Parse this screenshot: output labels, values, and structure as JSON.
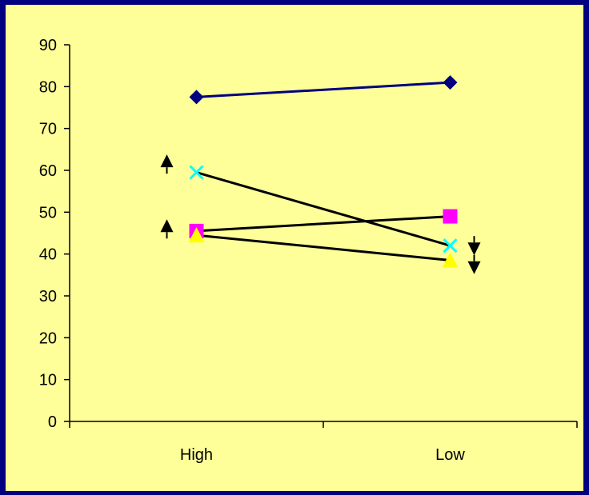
{
  "colors": {
    "frame": "#000080",
    "plot_background": "#FFFF99",
    "axis": "#000000"
  },
  "chart_data": {
    "type": "line",
    "title": "",
    "xlabel": "",
    "ylabel": "",
    "categories": [
      "High",
      "Low"
    ],
    "ylim": [
      0,
      90
    ],
    "yticks": [
      0,
      10,
      20,
      30,
      40,
      50,
      60,
      70,
      80,
      90
    ],
    "grid": false,
    "legend": "none",
    "series": [
      {
        "values": [
          77.5,
          81
        ],
        "color": "#000080",
        "line_color": "#000080",
        "marker": "diamond-icon",
        "marker_color": "#000080"
      },
      {
        "values": [
          59.5,
          42
        ],
        "color": "#00FFFF",
        "line_color": "#000000",
        "marker": "x-icon",
        "marker_color": "#00FFFF"
      },
      {
        "values": [
          45.5,
          49
        ],
        "color": "#FF00FF",
        "line_color": "#000000",
        "marker": "square-icon",
        "marker_color": "#FF00FF"
      },
      {
        "values": [
          44.5,
          38.5
        ],
        "color": "#FFFF00",
        "line_color": "#000000",
        "marker": "triangle-icon",
        "marker_color": "#FFFF00"
      }
    ],
    "annotations": [
      {
        "icon": "up-arrow-icon",
        "category": "High",
        "value": 61.5
      },
      {
        "icon": "up-arrow-icon",
        "category": "High",
        "value": 46
      },
      {
        "icon": "down-arrow-icon",
        "category": "Low",
        "value": 42
      },
      {
        "icon": "down-arrow-icon",
        "category": "Low",
        "value": 37.5
      }
    ]
  }
}
